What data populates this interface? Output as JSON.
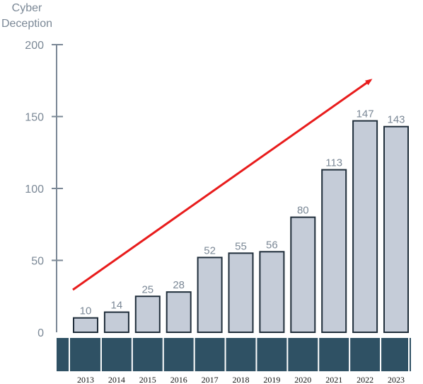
{
  "chart_data": {
    "type": "bar",
    "ylabel": "Cyber Deception",
    "ylabel_lines": [
      "Cyber",
      "Deception"
    ],
    "ylim": [
      0,
      200
    ],
    "yticks": [
      0,
      50,
      100,
      150,
      200
    ],
    "categories": [
      "2013",
      "2014",
      "2015",
      "2016",
      "2017",
      "2018",
      "2019",
      "2020",
      "2021",
      "2022",
      "2023"
    ],
    "values": [
      10,
      14,
      25,
      28,
      52,
      55,
      56,
      80,
      113,
      147,
      143
    ],
    "grid": false,
    "legend": "none",
    "trend_arrow": "rising, from 2013 to 2023"
  },
  "colors": {
    "bar_fill": "#c5ccd8",
    "bar_stroke": "#1f2d3a",
    "axis": "#7b8896",
    "label_text": "#7b8896",
    "category_band": "#2f5164",
    "arrow": "#e81c1c"
  }
}
